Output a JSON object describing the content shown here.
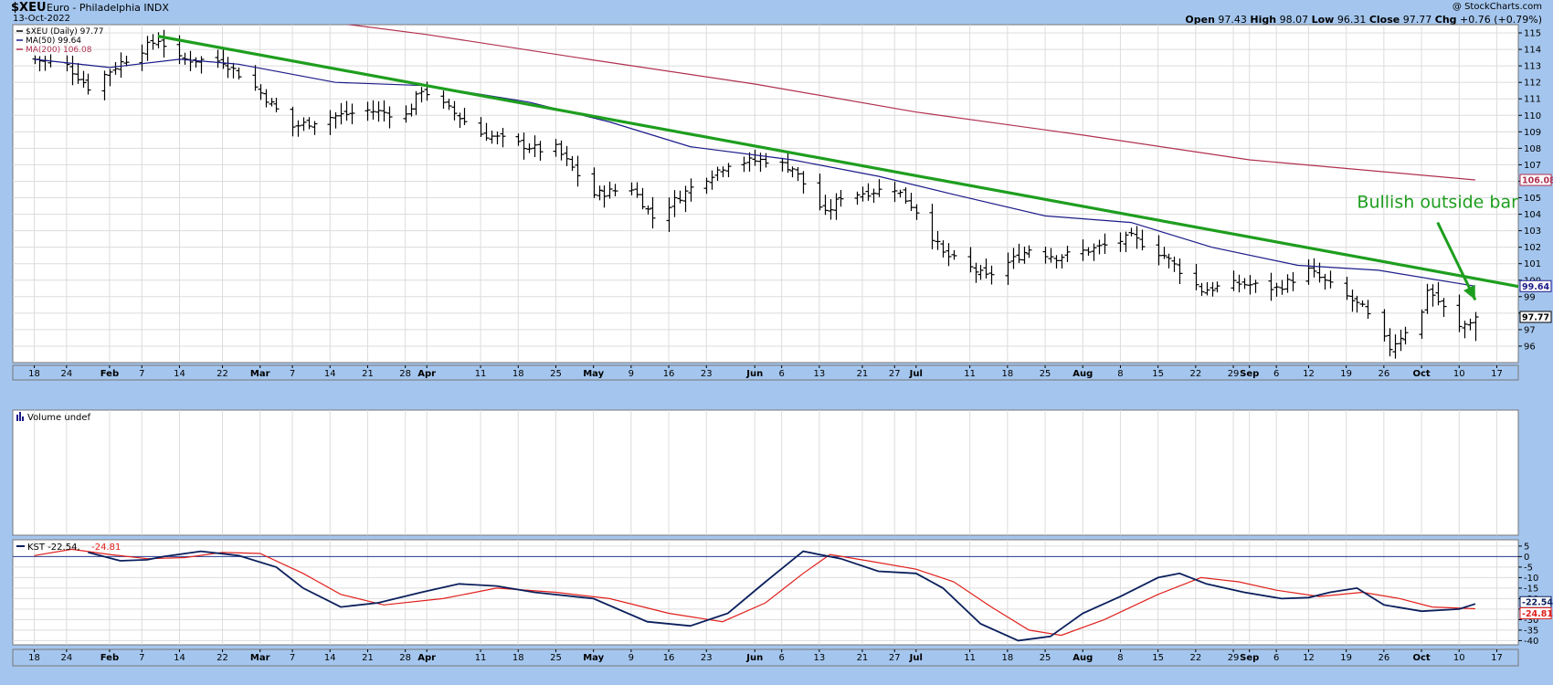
{
  "header": {
    "symbol": "$XEU",
    "name": "Euro - Philadelphia INDX",
    "date": "13-Oct-2022",
    "watermark": "@ StockCharts.com",
    "open_label": "Open",
    "open": "97.43",
    "high_label": "High",
    "high": "98.07",
    "low_label": "Low",
    "low": "96.31",
    "close_label": "Close",
    "close": "97.77",
    "chg_label": "Chg",
    "chg": "+0.76 (+0.79%)"
  },
  "colors": {
    "background": "#a4c6ee",
    "panel": "#ffffff",
    "grid": "#dcdcdc",
    "price": "#000000",
    "ma50": "#1b1b8a",
    "ma200": "#b03050",
    "trendline": "#1e9e1e",
    "kst": "#0b1f5c",
    "kst_signal": "#e0201c"
  },
  "chart_data": [
    {
      "type": "ohlc",
      "title": "$XEU (Daily) 97.77",
      "legend": [
        {
          "label": "$XEU (Daily) 97.77",
          "color": "#000000"
        },
        {
          "label": "MA(50) 99.64",
          "color": "#1b1b8a"
        },
        {
          "label": "MA(200) 106.08",
          "color": "#b03050"
        }
      ],
      "ylim": [
        95,
        115.5
      ],
      "yticks": [
        96,
        97,
        98,
        99,
        100,
        101,
        102,
        103,
        104,
        105,
        106,
        107,
        108,
        109,
        110,
        111,
        112,
        113,
        114,
        115
      ],
      "ytick_labels": [
        "96",
        "97",
        "",
        "99",
        "100",
        "101",
        "102",
        "103",
        "104",
        "105",
        "106",
        "107",
        "108",
        "109",
        "110",
        "111",
        "112",
        "113",
        "114",
        "115"
      ],
      "value_tags": [
        {
          "label": "106.08",
          "value": 106.08,
          "color": "#b03050"
        },
        {
          "label": "99.64",
          "value": 99.64,
          "color": "#1b1b8a"
        },
        {
          "label": "97.77",
          "value": 97.77,
          "color": "#000000"
        }
      ],
      "close_keypoints": [
        [
          "2022-01-18",
          113.4
        ],
        [
          "2022-01-24",
          113.0
        ],
        [
          "2022-01-28",
          111.7
        ],
        [
          "2022-02-03",
          113.2
        ],
        [
          "2022-02-10",
          114.6
        ],
        [
          "2022-02-14",
          113.4
        ],
        [
          "2022-02-22",
          113.3
        ],
        [
          "2022-02-28",
          111.7
        ],
        [
          "2022-03-07",
          109.3
        ],
        [
          "2022-03-14",
          109.9
        ],
        [
          "2022-03-21",
          110.3
        ],
        [
          "2022-03-28",
          110.0
        ],
        [
          "2022-03-31",
          111.6
        ],
        [
          "2022-04-11",
          108.9
        ],
        [
          "2022-04-22",
          107.9
        ],
        [
          "2022-04-25",
          108.0
        ],
        [
          "2022-05-02",
          105.2
        ],
        [
          "2022-05-09",
          105.6
        ],
        [
          "2022-05-13",
          103.8
        ],
        [
          "2022-05-20",
          105.6
        ],
        [
          "2022-05-27",
          107.1
        ],
        [
          "2022-06-03",
          107.3
        ],
        [
          "2022-06-08",
          106.8
        ],
        [
          "2022-06-14",
          104.0
        ],
        [
          "2022-06-17",
          105.1
        ],
        [
          "2022-06-27",
          105.6
        ],
        [
          "2022-07-01",
          104.2
        ],
        [
          "2022-07-06",
          101.6
        ],
        [
          "2022-07-14",
          100.2
        ],
        [
          "2022-07-22",
          101.9
        ],
        [
          "2022-07-27",
          101.4
        ],
        [
          "2022-08-03",
          101.9
        ],
        [
          "2022-08-10",
          102.6
        ],
        [
          "2022-08-16",
          101.5
        ],
        [
          "2022-08-23",
          99.4
        ],
        [
          "2022-08-30",
          99.8
        ],
        [
          "2022-09-06",
          99.5
        ],
        [
          "2022-09-12",
          100.6
        ],
        [
          "2022-09-15",
          99.9
        ],
        [
          "2022-09-22",
          98.3
        ],
        [
          "2022-09-27",
          95.9
        ],
        [
          "2022-10-03",
          98.0
        ],
        [
          "2022-10-04",
          99.5
        ],
        [
          "2022-10-10",
          97.1
        ],
        [
          "2022-10-13",
          97.77
        ]
      ],
      "ma50_keypoints": [
        [
          "2022-01-18",
          113.4
        ],
        [
          "2022-02-01",
          112.9
        ],
        [
          "2022-02-14",
          113.4
        ],
        [
          "2022-02-25",
          113.1
        ],
        [
          "2022-03-15",
          112.0
        ],
        [
          "2022-04-01",
          111.8
        ],
        [
          "2022-04-20",
          110.8
        ],
        [
          "2022-05-05",
          109.6
        ],
        [
          "2022-05-20",
          108.1
        ],
        [
          "2022-06-08",
          107.3
        ],
        [
          "2022-06-24",
          106.3
        ],
        [
          "2022-07-08",
          105.2
        ],
        [
          "2022-07-25",
          103.9
        ],
        [
          "2022-08-10",
          103.5
        ],
        [
          "2022-08-25",
          102.0
        ],
        [
          "2022-09-10",
          100.9
        ],
        [
          "2022-09-25",
          100.6
        ],
        [
          "2022-10-13",
          99.64
        ]
      ],
      "ma200_keypoints": [
        [
          "2022-02-01",
          117.0
        ],
        [
          "2022-03-01",
          116.2
        ],
        [
          "2022-04-01",
          114.9
        ],
        [
          "2022-05-01",
          113.4
        ],
        [
          "2022-06-01",
          111.9
        ],
        [
          "2022-07-01",
          110.2
        ],
        [
          "2022-08-01",
          108.8
        ],
        [
          "2022-09-01",
          107.3
        ],
        [
          "2022-10-13",
          106.08
        ]
      ],
      "trendline": {
        "start": [
          "2022-02-10",
          114.8
        ],
        "end": [
          "2022-10-28",
          99.2
        ],
        "color": "#1e9e1e"
      },
      "annotations": [
        {
          "text": "Bullish outside bar",
          "date": "2022-09-21",
          "value": 104.4,
          "color": "#1e9e1e",
          "arrow": {
            "from": [
              "2022-10-06",
              103.5
            ],
            "to": [
              "2022-10-13",
              98.8
            ]
          }
        }
      ]
    },
    {
      "type": "bar",
      "title": "Volume undef",
      "values": []
    },
    {
      "type": "line",
      "title": "KST",
      "legend": [
        {
          "label": "KST -22.54",
          "color": "#0b1f5c"
        },
        {
          "label": "-24.81",
          "color": "#e0201c"
        }
      ],
      "ylim": [
        -42,
        8
      ],
      "yticks": [
        5,
        0,
        -5,
        -10,
        -15,
        -20,
        -25,
        -30,
        -35,
        -40
      ],
      "ytick_labels": [
        "5",
        "0",
        "-5",
        "-10",
        "-15",
        "-20",
        "",
        "-30",
        "-35",
        "-40"
      ],
      "zero_line": 0,
      "value_tags": [
        {
          "label": "-22.54",
          "value": -22.54,
          "color": "#0b1f5c"
        },
        {
          "label": "-24.81",
          "value": -24.81,
          "color": "#e0201c"
        }
      ],
      "series": [
        {
          "name": "KST",
          "values": [
            [
              "2022-01-28",
              2.0
            ],
            [
              "2022-02-03",
              -2.0
            ],
            [
              "2022-02-08",
              -1.5
            ],
            [
              "2022-02-11",
              0.0
            ],
            [
              "2022-02-18",
              2.5
            ],
            [
              "2022-02-25",
              0.5
            ],
            [
              "2022-03-04",
              -5.0
            ],
            [
              "2022-03-09",
              -15.0
            ],
            [
              "2022-03-16",
              -24.0
            ],
            [
              "2022-03-23",
              -22.0
            ],
            [
              "2022-03-31",
              -17.0
            ],
            [
              "2022-04-07",
              -13.0
            ],
            [
              "2022-04-14",
              -14.0
            ],
            [
              "2022-04-21",
              -17.0
            ],
            [
              "2022-05-02",
              -20.0
            ],
            [
              "2022-05-12",
              -31.0
            ],
            [
              "2022-05-20",
              -33.0
            ],
            [
              "2022-05-27",
              -27.0
            ],
            [
              "2022-06-03",
              -12.0
            ],
            [
              "2022-06-10",
              2.5
            ],
            [
              "2022-06-17",
              -1.0
            ],
            [
              "2022-06-24",
              -7.0
            ],
            [
              "2022-07-01",
              -8.0
            ],
            [
              "2022-07-06",
              -15.0
            ],
            [
              "2022-07-13",
              -32.0
            ],
            [
              "2022-07-20",
              -40.0
            ],
            [
              "2022-07-26",
              -38.0
            ],
            [
              "2022-08-01",
              -27.0
            ],
            [
              "2022-08-08",
              -19.0
            ],
            [
              "2022-08-15",
              -10.0
            ],
            [
              "2022-08-19",
              -8.0
            ],
            [
              "2022-08-24",
              -13.0
            ],
            [
              "2022-08-31",
              -17.0
            ],
            [
              "2022-09-07",
              -20.0
            ],
            [
              "2022-09-12",
              -19.5
            ],
            [
              "2022-09-16",
              -17.0
            ],
            [
              "2022-09-21",
              -15.0
            ],
            [
              "2022-09-26",
              -23.0
            ],
            [
              "2022-10-03",
              -26.0
            ],
            [
              "2022-10-10",
              -25.0
            ],
            [
              "2022-10-13",
              -22.54
            ]
          ]
        },
        {
          "name": "-24.81",
          "values": [
            [
              "2022-01-18",
              0.5
            ],
            [
              "2022-01-25",
              3.5
            ],
            [
              "2022-02-01",
              1.0
            ],
            [
              "2022-02-08",
              -1.0
            ],
            [
              "2022-02-15",
              -0.5
            ],
            [
              "2022-02-22",
              2.0
            ],
            [
              "2022-03-01",
              1.5
            ],
            [
              "2022-03-09",
              -8.0
            ],
            [
              "2022-03-16",
              -18.0
            ],
            [
              "2022-03-24",
              -23.0
            ],
            [
              "2022-04-04",
              -20.0
            ],
            [
              "2022-04-14",
              -15.0
            ],
            [
              "2022-04-25",
              -17.0
            ],
            [
              "2022-05-05",
              -20.0
            ],
            [
              "2022-05-16",
              -27.0
            ],
            [
              "2022-05-26",
              -31.0
            ],
            [
              "2022-06-03",
              -22.0
            ],
            [
              "2022-06-10",
              -8.0
            ],
            [
              "2022-06-15",
              1.0
            ],
            [
              "2022-06-22",
              -2.0
            ],
            [
              "2022-07-01",
              -6.0
            ],
            [
              "2022-07-08",
              -12.0
            ],
            [
              "2022-07-15",
              -24.0
            ],
            [
              "2022-07-22",
              -35.0
            ],
            [
              "2022-07-28",
              -37.5
            ],
            [
              "2022-08-05",
              -30.0
            ],
            [
              "2022-08-15",
              -18.0
            ],
            [
              "2022-08-23",
              -10.0
            ],
            [
              "2022-08-30",
              -12.0
            ],
            [
              "2022-09-06",
              -16.0
            ],
            [
              "2022-09-14",
              -19.0
            ],
            [
              "2022-09-22",
              -17.0
            ],
            [
              "2022-09-29",
              -20.0
            ],
            [
              "2022-10-05",
              -24.0
            ],
            [
              "2022-10-13",
              -24.81
            ]
          ]
        }
      ]
    }
  ],
  "x_axis": {
    "ticks": [
      {
        "label": "18",
        "date": "2022-01-18"
      },
      {
        "label": "24",
        "date": "2022-01-24"
      },
      {
        "label": "Feb",
        "date": "2022-02-01",
        "bold": true
      },
      {
        "label": "7",
        "date": "2022-02-07"
      },
      {
        "label": "14",
        "date": "2022-02-14"
      },
      {
        "label": "22",
        "date": "2022-02-22"
      },
      {
        "label": "Mar",
        "date": "2022-03-01",
        "bold": true
      },
      {
        "label": "7",
        "date": "2022-03-07"
      },
      {
        "label": "14",
        "date": "2022-03-14"
      },
      {
        "label": "21",
        "date": "2022-03-21"
      },
      {
        "label": "28",
        "date": "2022-03-28"
      },
      {
        "label": "Apr",
        "date": "2022-04-01",
        "bold": true
      },
      {
        "label": "11",
        "date": "2022-04-11"
      },
      {
        "label": "18",
        "date": "2022-04-18"
      },
      {
        "label": "25",
        "date": "2022-04-25"
      },
      {
        "label": "May",
        "date": "2022-05-02",
        "bold": true
      },
      {
        "label": "9",
        "date": "2022-05-09"
      },
      {
        "label": "16",
        "date": "2022-05-16"
      },
      {
        "label": "23",
        "date": "2022-05-23"
      },
      {
        "label": "Jun",
        "date": "2022-06-01",
        "bold": true
      },
      {
        "label": "6",
        "date": "2022-06-06"
      },
      {
        "label": "13",
        "date": "2022-06-13"
      },
      {
        "label": "21",
        "date": "2022-06-21"
      },
      {
        "label": "27",
        "date": "2022-06-27"
      },
      {
        "label": "Jul",
        "date": "2022-07-01",
        "bold": true
      },
      {
        "label": "11",
        "date": "2022-07-11"
      },
      {
        "label": "18",
        "date": "2022-07-18"
      },
      {
        "label": "25",
        "date": "2022-07-25"
      },
      {
        "label": "Aug",
        "date": "2022-08-01",
        "bold": true
      },
      {
        "label": "8",
        "date": "2022-08-08"
      },
      {
        "label": "15",
        "date": "2022-08-15"
      },
      {
        "label": "22",
        "date": "2022-08-22"
      },
      {
        "label": "29",
        "date": "2022-08-29"
      },
      {
        "label": "Sep",
        "date": "2022-09-01",
        "bold": true
      },
      {
        "label": "6",
        "date": "2022-09-06"
      },
      {
        "label": "12",
        "date": "2022-09-12"
      },
      {
        "label": "19",
        "date": "2022-09-19"
      },
      {
        "label": "26",
        "date": "2022-09-26"
      },
      {
        "label": "Oct",
        "date": "2022-10-03",
        "bold": true
      },
      {
        "label": "10",
        "date": "2022-10-10"
      },
      {
        "label": "17",
        "date": "2022-10-17"
      }
    ],
    "range": [
      "2022-01-14",
      "2022-10-21"
    ]
  }
}
